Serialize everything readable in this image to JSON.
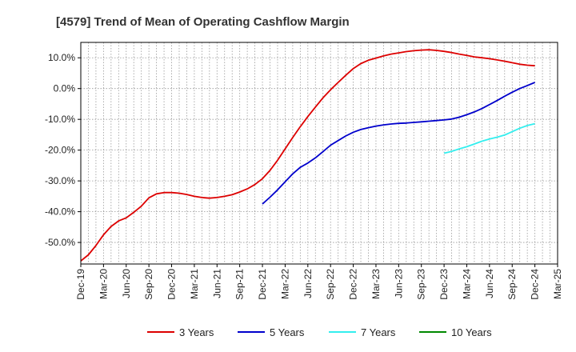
{
  "chart_data": {
    "type": "line",
    "title": "[4579]  Trend of Mean of Operating Cashflow Margin",
    "xlabel": "",
    "ylabel": "",
    "grid": true,
    "legend_position": "bottom",
    "x_ticks": [
      "Dec-19",
      "Mar-20",
      "Jun-20",
      "Sep-20",
      "Dec-20",
      "Mar-21",
      "Jun-21",
      "Sep-21",
      "Dec-21",
      "Mar-22",
      "Jun-22",
      "Sep-22",
      "Dec-22",
      "Mar-23",
      "Jun-23",
      "Sep-23",
      "Dec-23",
      "Mar-24",
      "Jun-24",
      "Sep-24",
      "Dec-24",
      "Mar-25"
    ],
    "y_ticks": [
      10,
      0,
      -10,
      -20,
      -30,
      -40,
      -50
    ],
    "y_tick_labels": [
      "10.0%",
      "0.0%",
      "-10.0%",
      "-20.0%",
      "-30.0%",
      "-40.0%",
      "-50.0%"
    ],
    "ylim": [
      -57,
      15
    ],
    "xlim": [
      "Dec-19",
      "Mar-25"
    ],
    "series": [
      {
        "name": "3 Years",
        "color": "#dd0000",
        "x": [
          "Dec-19",
          "Jan-20",
          "Feb-20",
          "Mar-20",
          "Apr-20",
          "May-20",
          "Jun-20",
          "Jul-20",
          "Aug-20",
          "Sep-20",
          "Oct-20",
          "Nov-20",
          "Dec-20",
          "Jan-21",
          "Feb-21",
          "Mar-21",
          "Apr-21",
          "May-21",
          "Jun-21",
          "Jul-21",
          "Aug-21",
          "Sep-21",
          "Oct-21",
          "Nov-21",
          "Dec-21",
          "Jan-22",
          "Feb-22",
          "Mar-22",
          "Apr-22",
          "May-22",
          "Jun-22",
          "Jul-22",
          "Aug-22",
          "Sep-22",
          "Oct-22",
          "Nov-22",
          "Dec-22",
          "Jan-23",
          "Feb-23",
          "Mar-23",
          "Apr-23",
          "May-23",
          "Jun-23",
          "Jul-23",
          "Aug-23",
          "Sep-23",
          "Oct-23",
          "Nov-23",
          "Dec-23",
          "Jan-24",
          "Feb-24",
          "Mar-24",
          "Apr-24",
          "May-24",
          "Jun-24",
          "Jul-24",
          "Aug-24",
          "Sep-24",
          "Oct-24",
          "Nov-24",
          "Dec-24"
        ],
        "values": [
          -56.0,
          -54.0,
          -51.0,
          -47.5,
          -44.8,
          -43.0,
          -42.0,
          -40.2,
          -38.2,
          -35.5,
          -34.2,
          -33.8,
          -33.8,
          -34.0,
          -34.4,
          -35.0,
          -35.4,
          -35.6,
          -35.4,
          -35.0,
          -34.5,
          -33.6,
          -32.6,
          -31.2,
          -29.3,
          -26.6,
          -23.3,
          -19.6,
          -15.9,
          -12.4,
          -9.1,
          -6.0,
          -3.0,
          -0.4,
          2.0,
          4.3,
          6.5,
          8.1,
          9.2,
          9.9,
          10.6,
          11.2,
          11.6,
          12.0,
          12.3,
          12.5,
          12.6,
          12.4,
          12.1,
          11.7,
          11.2,
          10.8,
          10.3,
          10.0,
          9.7,
          9.3,
          8.9,
          8.4,
          7.9,
          7.6,
          7.4
        ]
      },
      {
        "name": "5 Years",
        "color": "#0000cc",
        "x": [
          "Dec-21",
          "Jan-22",
          "Feb-22",
          "Mar-22",
          "Apr-22",
          "May-22",
          "Jun-22",
          "Jul-22",
          "Aug-22",
          "Sep-22",
          "Oct-22",
          "Nov-22",
          "Dec-22",
          "Jan-23",
          "Feb-23",
          "Mar-23",
          "Apr-23",
          "May-23",
          "Jun-23",
          "Jul-23",
          "Aug-23",
          "Sep-23",
          "Oct-23",
          "Nov-23",
          "Dec-23",
          "Jan-24",
          "Feb-24",
          "Mar-24",
          "Apr-24",
          "May-24",
          "Jun-24",
          "Jul-24",
          "Aug-24",
          "Sep-24",
          "Oct-24",
          "Nov-24",
          "Dec-24"
        ],
        "values": [
          -37.5,
          -35.3,
          -32.9,
          -30.3,
          -27.7,
          -25.6,
          -24.2,
          -22.5,
          -20.5,
          -18.4,
          -16.9,
          -15.4,
          -14.2,
          -13.3,
          -12.7,
          -12.2,
          -11.8,
          -11.5,
          -11.3,
          -11.2,
          -11.0,
          -10.8,
          -10.6,
          -10.4,
          -10.2,
          -9.9,
          -9.3,
          -8.5,
          -7.6,
          -6.5,
          -5.2,
          -3.9,
          -2.5,
          -1.2,
          0.0,
          1.0,
          2.0
        ]
      },
      {
        "name": "7 Years",
        "color": "#33eeee",
        "x": [
          "Dec-23",
          "Jan-24",
          "Feb-24",
          "Mar-24",
          "Apr-24",
          "May-24",
          "Jun-24",
          "Jul-24",
          "Aug-24",
          "Sep-24",
          "Oct-24",
          "Nov-24",
          "Dec-24"
        ],
        "values": [
          -21.0,
          -20.4,
          -19.6,
          -18.9,
          -18.0,
          -17.1,
          -16.4,
          -15.8,
          -15.1,
          -14.0,
          -12.9,
          -12.0,
          -11.4
        ]
      },
      {
        "name": "10 Years",
        "color": "#008800",
        "x": [],
        "values": []
      }
    ]
  }
}
